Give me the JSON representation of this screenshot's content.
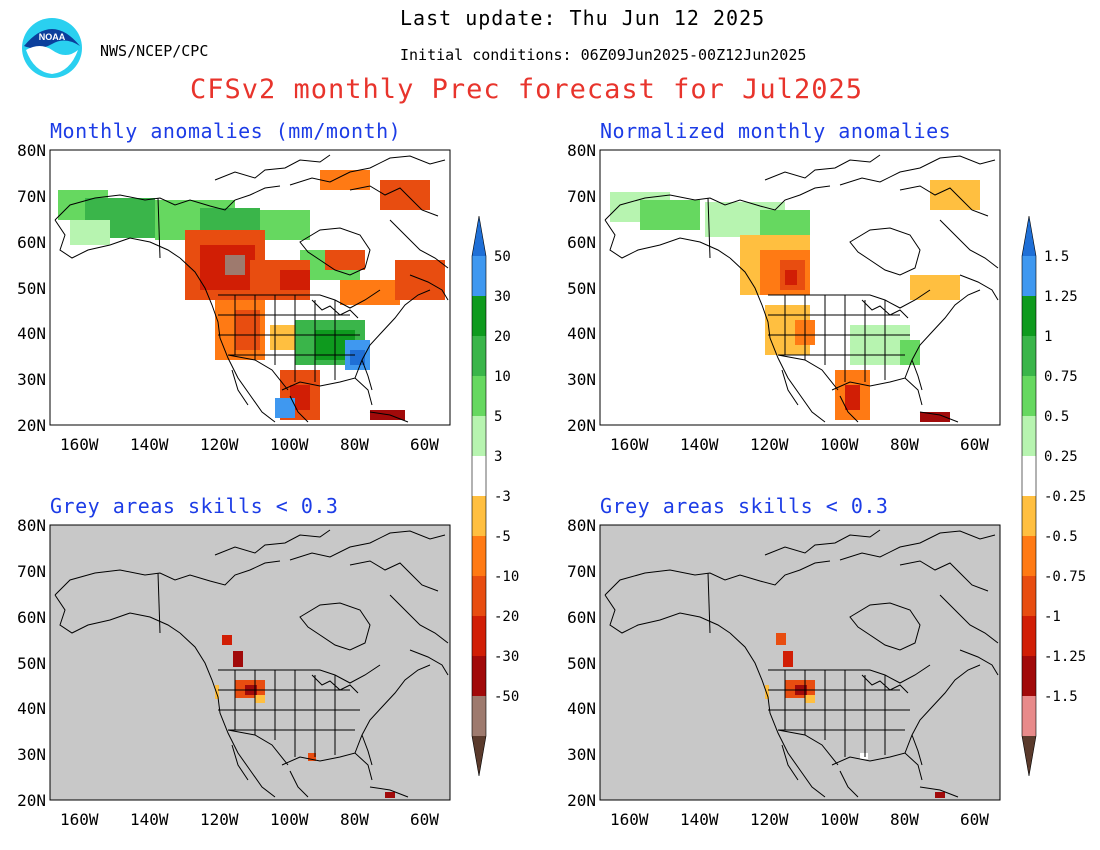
{
  "header": {
    "last_update": "Last update: Thu Jun 12 2025",
    "initial_conditions": "Initial conditions: 06Z09Jun2025-00Z12Jun2025",
    "org": "NWS/NCEP/CPC",
    "logo_text": "NOAA",
    "title": "CFSv2 monthly Prec forecast for Jul2025"
  },
  "panels": {
    "top_left_title": "Monthly anomalies (mm/month)",
    "top_right_title": "Normalized monthly anomalies",
    "bottom_left_title": "Grey areas skills < 0.3",
    "bottom_right_title": "Grey areas skills < 0.3"
  },
  "axes": {
    "lat_labels": [
      "80N",
      "70N",
      "60N",
      "50N",
      "40N",
      "30N",
      "20N"
    ],
    "lon_labels": [
      "160W",
      "140W",
      "120W",
      "100W",
      "80W",
      "60W"
    ]
  },
  "colorbar_left": {
    "labels": [
      "50",
      "30",
      "20",
      "10",
      "5",
      "3",
      "-3",
      "-5",
      "-10",
      "-20",
      "-30",
      "-50"
    ]
  },
  "colorbar_right": {
    "labels": [
      "1.5",
      "1.25",
      "1",
      "0.75",
      "0.5",
      "0.25",
      "-0.25",
      "-0.5",
      "-0.75",
      "-1",
      "-1.25",
      "-1.5"
    ]
  },
  "colors": {
    "wet": [
      "#1f6fd6",
      "#3f98f0",
      "#0e9a1e",
      "#3ab54a",
      "#66d860",
      "#b7f4b0"
    ],
    "neutral": "#ffffff",
    "dry": [
      "#ffbf40",
      "#ff7a14",
      "#e84d10",
      "#d11e05",
      "#a10a0a",
      "#9e7a6e",
      "#5a3a2c"
    ],
    "dry_right": [
      "#ffbf40",
      "#ff7a14",
      "#e84d10",
      "#d11e05",
      "#a10a0a",
      "#e88a8a",
      "#5a3a2c"
    ],
    "grey_mask": "#c8c8c8",
    "title": "#e8342c",
    "panel_title": "#1c3ce6"
  }
}
